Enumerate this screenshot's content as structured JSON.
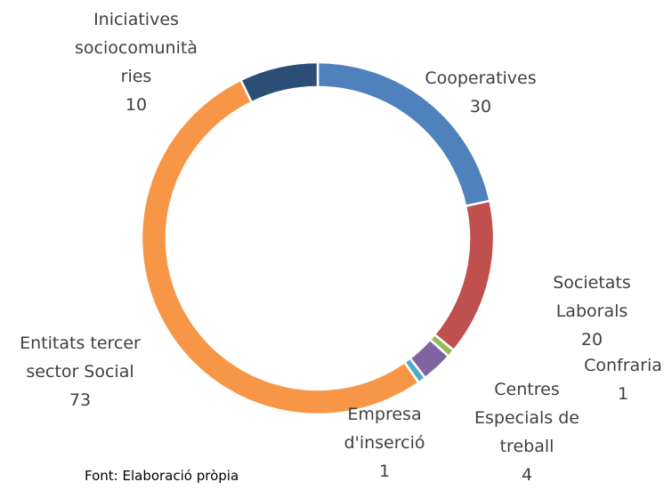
{
  "chart_data": {
    "type": "donut",
    "categories": [
      "Cooperatives",
      "Societats Laborals",
      "Confraria",
      "Centres Especials de treball",
      "Empresa d'inserció",
      "Entitats tercer sector Social",
      "Iniciatives sociocomunitàries"
    ],
    "values": [
      30,
      20,
      1,
      4,
      1,
      73,
      10
    ],
    "colors": [
      "#4f81bd",
      "#c0504d",
      "#9bbb59",
      "#8064a2",
      "#4bacc6",
      "#f79646",
      "#2c4d75"
    ],
    "source": "Font: Elaboració pròpia"
  }
}
